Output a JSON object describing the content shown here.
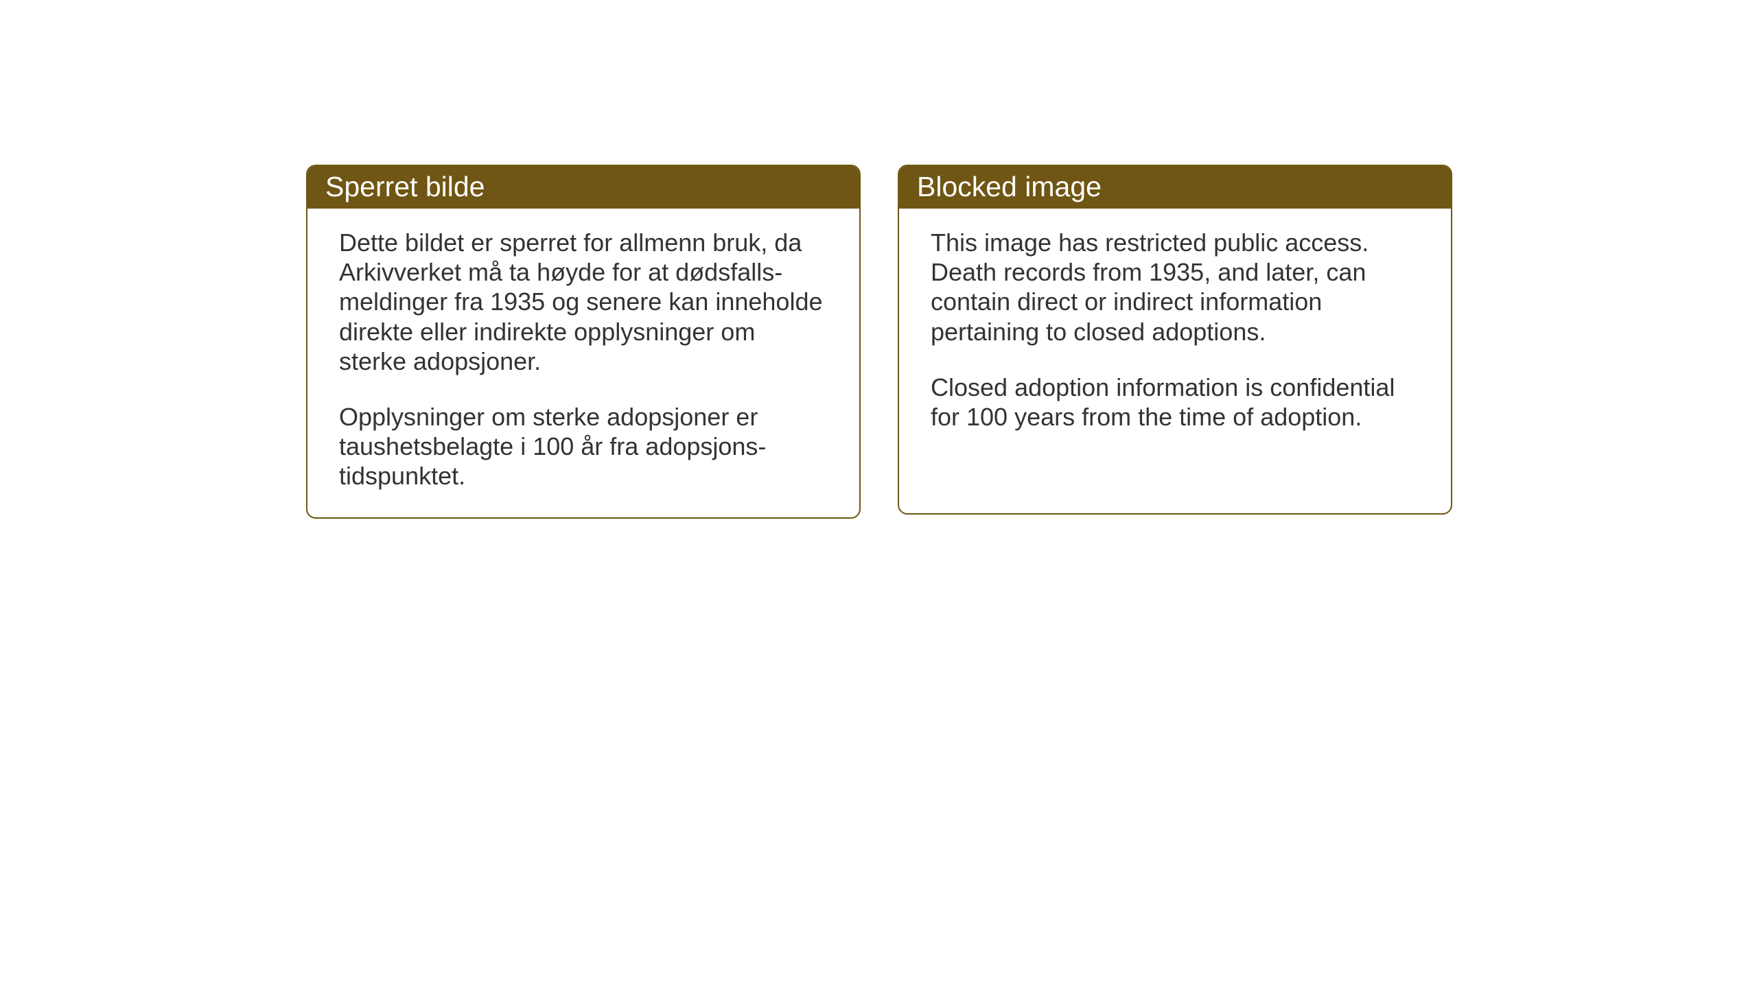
{
  "cards": {
    "left": {
      "title": "Sperret bilde",
      "paragraph1": "Dette bildet er sperret for allmenn bruk, da Arkivverket må ta høyde for at dødsfalls-meldinger fra 1935 og senere kan inneholde direkte eller indirekte opplysninger om sterke adopsjoner.",
      "paragraph2": "Opplysninger om sterke adopsjoner er taushetsbelagte i 100 år fra adopsjons-tidspunktet."
    },
    "right": {
      "title": "Blocked image",
      "paragraph1": "This image has restricted public access. Death records from 1935, and later, can contain direct or indirect information pertaining to closed adoptions.",
      "paragraph2": "Closed adoption information is confidential for 100 years from the time of adoption."
    }
  },
  "styling": {
    "header_bg_color": "#6f5614",
    "header_text_color": "#ffffff",
    "border_color": "#6f5614",
    "body_text_color": "#333333",
    "page_bg_color": "#ffffff",
    "header_font_size": 41,
    "body_font_size": 36,
    "border_radius": 14,
    "border_width": 2
  }
}
